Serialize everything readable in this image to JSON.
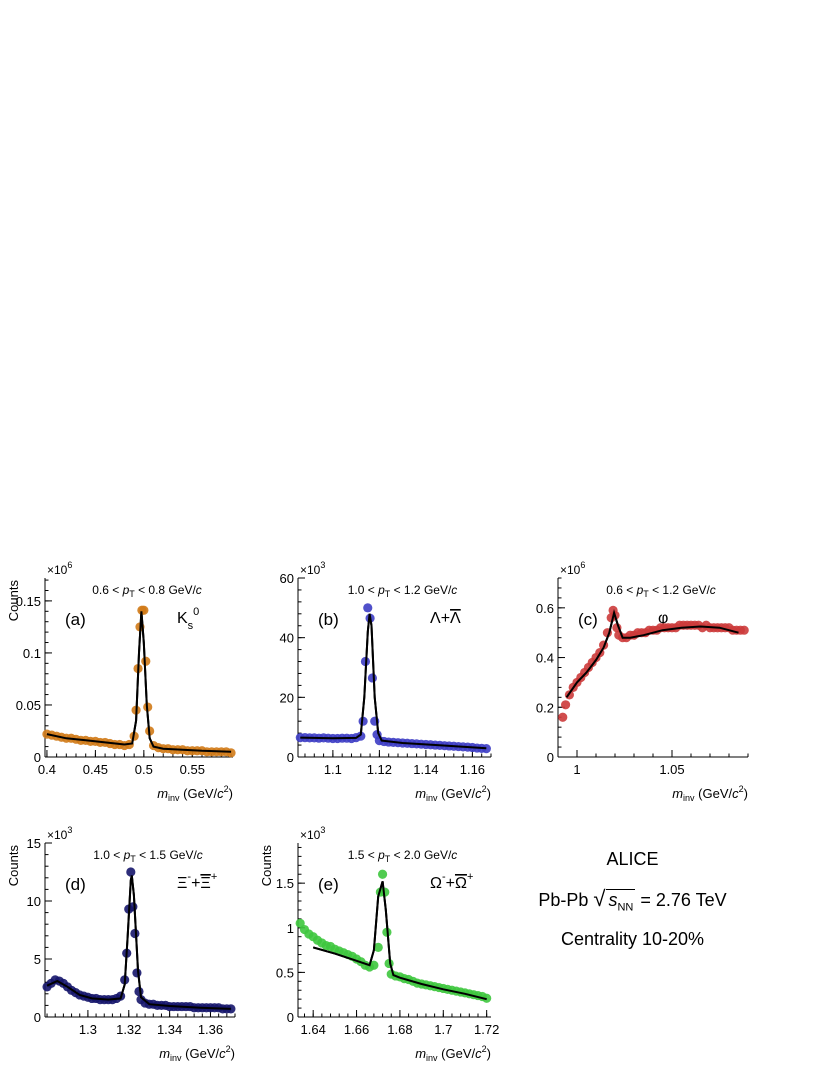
{
  "chart_data": [
    {
      "type": "scatter",
      "panel_label": "(a)",
      "particle_html": "K<tspan font-size='11' dy='6'>s</tspan><tspan font-size='11' dy='-14'>0</tspan>",
      "particle": "Ks0",
      "pt_range": "0.6 < pT < 0.8 GeV/c",
      "ylabel": "Counts",
      "xlabel": "minv (GeV/c2)",
      "exponent_label": "×10^6",
      "xlim": [
        0.398,
        0.592
      ],
      "ylim": [
        0,
        0.172
      ],
      "xticks": [
        0.4,
        0.45,
        0.5,
        0.55
      ],
      "xtick_labels": [
        "0.4",
        "0.45",
        "0.5",
        "0.55"
      ],
      "yticks": [
        0,
        0.05,
        0.1,
        0.15
      ],
      "ytick_labels": [
        "0",
        "0.05",
        "0.1",
        "0.15"
      ],
      "marker_color": "#d07a17",
      "points": {
        "x": [
          0.4,
          0.405,
          0.41,
          0.415,
          0.42,
          0.425,
          0.43,
          0.435,
          0.44,
          0.445,
          0.45,
          0.455,
          0.46,
          0.465,
          0.47,
          0.475,
          0.48,
          0.485,
          0.49,
          0.492,
          0.494,
          0.496,
          0.498,
          0.5,
          0.502,
          0.504,
          0.506,
          0.51,
          0.515,
          0.52,
          0.525,
          0.53,
          0.535,
          0.54,
          0.545,
          0.55,
          0.555,
          0.56,
          0.565,
          0.57,
          0.575,
          0.58,
          0.585,
          0.59
        ],
        "y": [
          0.022,
          0.021,
          0.02,
          0.019,
          0.018,
          0.018,
          0.017,
          0.016,
          0.016,
          0.015,
          0.015,
          0.014,
          0.014,
          0.013,
          0.012,
          0.012,
          0.011,
          0.012,
          0.02,
          0.045,
          0.085,
          0.125,
          0.141,
          0.141,
          0.092,
          0.048,
          0.025,
          0.011,
          0.009,
          0.008,
          0.008,
          0.007,
          0.007,
          0.007,
          0.006,
          0.006,
          0.006,
          0.006,
          0.005,
          0.005,
          0.005,
          0.005,
          0.005,
          0.004
        ]
      },
      "fit": {
        "x": [
          0.4,
          0.42,
          0.44,
          0.46,
          0.48,
          0.488,
          0.492,
          0.495,
          0.4975,
          0.5,
          0.503,
          0.506,
          0.51,
          0.52,
          0.54,
          0.56,
          0.59
        ],
        "y": [
          0.022,
          0.018,
          0.016,
          0.014,
          0.012,
          0.013,
          0.035,
          0.1,
          0.14,
          0.11,
          0.05,
          0.018,
          0.01,
          0.008,
          0.007,
          0.006,
          0.005
        ]
      }
    },
    {
      "type": "scatter",
      "panel_label": "(b)",
      "particle_html": "Λ+<tspan text-decoration='overline'>Λ</tspan>",
      "particle": "Λ+Λbar",
      "pt_range": "1.0 < pT < 1.2 GeV/c",
      "ylabel": "",
      "xlabel": "minv (GeV/c2)",
      "exponent_label": "×10^3",
      "xlim": [
        1.085,
        1.168
      ],
      "ylim": [
        0,
        60
      ],
      "xticks": [
        1.1,
        1.12,
        1.14,
        1.16
      ],
      "xtick_labels": [
        "1.1",
        "1.12",
        "1.14",
        "1.16"
      ],
      "yticks": [
        0,
        20,
        40,
        60
      ],
      "ytick_labels": [
        "0",
        "20",
        "40",
        "60"
      ],
      "marker_color": "#3d3dc4",
      "points": {
        "x": [
          1.086,
          1.088,
          1.09,
          1.092,
          1.094,
          1.096,
          1.098,
          1.1,
          1.102,
          1.104,
          1.106,
          1.108,
          1.11,
          1.112,
          1.113,
          1.114,
          1.115,
          1.116,
          1.117,
          1.118,
          1.119,
          1.12,
          1.122,
          1.124,
          1.126,
          1.128,
          1.13,
          1.132,
          1.134,
          1.136,
          1.138,
          1.14,
          1.142,
          1.144,
          1.146,
          1.148,
          1.15,
          1.152,
          1.154,
          1.156,
          1.158,
          1.16,
          1.162,
          1.164,
          1.166
        ],
        "y": [
          6.5,
          6.5,
          6.4,
          6.4,
          6.3,
          6.4,
          6.3,
          6.2,
          6.2,
          6.3,
          6.3,
          6.2,
          6.5,
          7.0,
          12.0,
          32.0,
          50.0,
          46.5,
          26.5,
          12.0,
          7.5,
          5.5,
          5.2,
          5.0,
          4.9,
          4.8,
          4.7,
          4.6,
          4.5,
          4.4,
          4.3,
          4.2,
          4.1,
          4.0,
          3.9,
          3.8,
          3.7,
          3.6,
          3.5,
          3.4,
          3.3,
          3.2,
          3.0,
          2.9,
          2.8
        ]
      },
      "fit": {
        "x": [
          1.086,
          1.1,
          1.11,
          1.112,
          1.1135,
          1.115,
          1.1158,
          1.1166,
          1.118,
          1.1195,
          1.121,
          1.13,
          1.145,
          1.166
        ],
        "y": [
          6.5,
          6.3,
          6.4,
          7.5,
          20.0,
          42.0,
          48.0,
          44.0,
          20.0,
          8.0,
          5.5,
          4.7,
          4.0,
          2.9
        ]
      }
    },
    {
      "type": "scatter",
      "panel_label": "(c)",
      "particle_html": "φ",
      "particle": "φ",
      "pt_range": "0.6 < pT < 1.2 GeV/c",
      "ylabel": "",
      "xlabel": "minv (GeV/c2)",
      "exponent_label": "×10^6",
      "xlim": [
        0.99,
        1.09
      ],
      "ylim": [
        0,
        0.72
      ],
      "xticks": [
        1.0,
        1.05
      ],
      "xtick_labels": [
        "1",
        "1.05"
      ],
      "yticks": [
        0,
        0.2,
        0.4,
        0.6
      ],
      "ytick_labels": [
        "0",
        "0.2",
        "0.4",
        "0.6"
      ],
      "marker_color": "#cc3b3b",
      "points": {
        "x": [
          0.9925,
          0.994,
          0.996,
          0.998,
          1.0,
          1.002,
          1.004,
          1.006,
          1.008,
          1.01,
          1.012,
          1.014,
          1.016,
          1.018,
          1.019,
          1.02,
          1.021,
          1.022,
          1.024,
          1.026,
          1.028,
          1.03,
          1.032,
          1.034,
          1.036,
          1.038,
          1.04,
          1.042,
          1.044,
          1.046,
          1.048,
          1.05,
          1.052,
          1.054,
          1.056,
          1.058,
          1.06,
          1.062,
          1.064,
          1.066,
          1.068,
          1.07,
          1.072,
          1.074,
          1.076,
          1.078,
          1.08,
          1.082,
          1.084,
          1.086,
          1.088
        ],
        "y": [
          0.16,
          0.21,
          0.25,
          0.28,
          0.3,
          0.32,
          0.34,
          0.36,
          0.38,
          0.4,
          0.42,
          0.45,
          0.5,
          0.56,
          0.59,
          0.57,
          0.52,
          0.49,
          0.48,
          0.48,
          0.49,
          0.49,
          0.5,
          0.5,
          0.5,
          0.51,
          0.51,
          0.51,
          0.52,
          0.52,
          0.52,
          0.52,
          0.52,
          0.53,
          0.53,
          0.53,
          0.53,
          0.53,
          0.53,
          0.52,
          0.53,
          0.52,
          0.52,
          0.52,
          0.52,
          0.52,
          0.52,
          0.51,
          0.51,
          0.51,
          0.51
        ]
      },
      "fit": {
        "x": [
          0.9945,
          1.0,
          1.005,
          1.01,
          1.014,
          1.017,
          1.0195,
          1.0215,
          1.024,
          1.028,
          1.035,
          1.045,
          1.055,
          1.065,
          1.075,
          1.085
        ],
        "y": [
          0.24,
          0.3,
          0.34,
          0.39,
          0.44,
          0.5,
          0.58,
          0.53,
          0.48,
          0.48,
          0.49,
          0.51,
          0.52,
          0.525,
          0.52,
          0.5
        ]
      }
    },
    {
      "type": "scatter",
      "panel_label": "(d)",
      "particle_html": "Ξ<tspan font-size='11' dy='-8'>-</tspan><tspan dy='8'>+</tspan><tspan text-decoration='overline'>Ξ</tspan><tspan font-size='11' dy='-8'>+</tspan>",
      "particle": "Ξ-+Ξbar+",
      "pt_range": "1.0 < pT < 1.5 GeV/c",
      "ylabel": "Counts",
      "xlabel": "minv (GeV/c2)",
      "exponent_label": "×10^3",
      "xlim": [
        1.279,
        1.372
      ],
      "ylim": [
        0,
        15
      ],
      "xticks": [
        1.3,
        1.32,
        1.34,
        1.36
      ],
      "xtick_labels": [
        "1.3",
        "1.32",
        "1.34",
        "1.36"
      ],
      "yticks": [
        0,
        5,
        10,
        15
      ],
      "ytick_labels": [
        "0",
        "5",
        "10",
        "15"
      ],
      "marker_color": "#16166b",
      "points": {
        "x": [
          1.28,
          1.282,
          1.284,
          1.286,
          1.288,
          1.29,
          1.292,
          1.294,
          1.296,
          1.298,
          1.3,
          1.302,
          1.304,
          1.306,
          1.308,
          1.31,
          1.312,
          1.314,
          1.316,
          1.318,
          1.319,
          1.32,
          1.321,
          1.322,
          1.323,
          1.324,
          1.325,
          1.326,
          1.328,
          1.33,
          1.332,
          1.334,
          1.336,
          1.338,
          1.34,
          1.342,
          1.344,
          1.346,
          1.348,
          1.35,
          1.352,
          1.354,
          1.356,
          1.358,
          1.36,
          1.362,
          1.364,
          1.366,
          1.368,
          1.37
        ],
        "y": [
          2.6,
          2.9,
          3.2,
          3.1,
          2.9,
          2.6,
          2.3,
          2.1,
          1.9,
          1.8,
          1.7,
          1.6,
          1.6,
          1.5,
          1.5,
          1.5,
          1.5,
          1.6,
          1.8,
          3.2,
          5.5,
          9.3,
          12.5,
          9.5,
          7.2,
          3.8,
          2.2,
          1.5,
          1.2,
          1.1,
          1.1,
          1.0,
          1.0,
          1.0,
          0.9,
          0.9,
          0.9,
          0.9,
          0.9,
          0.9,
          0.8,
          0.8,
          0.8,
          0.8,
          0.8,
          0.8,
          0.8,
          0.7,
          0.7,
          0.7
        ]
      },
      "fit": {
        "x": [
          1.28,
          1.285,
          1.29,
          1.296,
          1.302,
          1.31,
          1.316,
          1.318,
          1.3195,
          1.321,
          1.3215,
          1.3225,
          1.3245,
          1.326,
          1.33,
          1.34,
          1.355,
          1.37
        ],
        "y": [
          2.7,
          3.1,
          2.6,
          1.9,
          1.6,
          1.5,
          1.6,
          2.8,
          7.0,
          11.8,
          12.2,
          10.5,
          4.0,
          1.7,
          1.1,
          0.95,
          0.8,
          0.7
        ]
      }
    },
    {
      "type": "scatter",
      "panel_label": "(e)",
      "particle_html": "Ω<tspan font-size='11' dy='-8'>-</tspan><tspan dy='8'>+</tspan><tspan text-decoration='overline'>Ω</tspan><tspan font-size='11' dy='-8'>+</tspan>",
      "particle": "Ω-+Ωbar+",
      "pt_range": "1.5 < pT < 2.0 GeV/c",
      "ylabel": "Counts",
      "xlabel": "minv (GeV/c2)",
      "exponent_label": "×10^3",
      "xlim": [
        1.633,
        1.722
      ],
      "ylim": [
        0,
        1.95
      ],
      "xticks": [
        1.64,
        1.66,
        1.68,
        1.7,
        1.72
      ],
      "xtick_labels": [
        "1.64",
        "1.66",
        "1.68",
        "1.7",
        "1.72"
      ],
      "yticks": [
        0,
        0.5,
        1.0,
        1.5
      ],
      "ytick_labels": [
        "0",
        "0.5",
        "1",
        "1.5"
      ],
      "marker_color": "#3ec73e",
      "points": {
        "x": [
          1.634,
          1.636,
          1.638,
          1.64,
          1.642,
          1.644,
          1.646,
          1.648,
          1.65,
          1.652,
          1.654,
          1.656,
          1.658,
          1.66,
          1.662,
          1.664,
          1.666,
          1.668,
          1.67,
          1.671,
          1.672,
          1.673,
          1.674,
          1.675,
          1.676,
          1.678,
          1.68,
          1.682,
          1.684,
          1.686,
          1.688,
          1.69,
          1.692,
          1.694,
          1.696,
          1.698,
          1.7,
          1.702,
          1.704,
          1.706,
          1.708,
          1.71,
          1.712,
          1.714,
          1.716,
          1.718,
          1.72
        ],
        "y": [
          1.05,
          0.98,
          0.93,
          0.9,
          0.86,
          0.83,
          0.8,
          0.79,
          0.76,
          0.74,
          0.72,
          0.7,
          0.68,
          0.65,
          0.62,
          0.58,
          0.56,
          0.58,
          0.78,
          1.4,
          1.6,
          1.4,
          0.95,
          0.6,
          0.48,
          0.46,
          0.45,
          0.43,
          0.42,
          0.4,
          0.38,
          0.37,
          0.36,
          0.35,
          0.34,
          0.33,
          0.32,
          0.31,
          0.3,
          0.29,
          0.28,
          0.27,
          0.26,
          0.25,
          0.24,
          0.23,
          0.21
        ]
      },
      "fit": {
        "x": [
          1.64,
          1.65,
          1.66,
          1.666,
          1.668,
          1.67,
          1.672,
          1.6735,
          1.6755,
          1.677,
          1.68,
          1.69,
          1.7,
          1.71,
          1.72
        ],
        "y": [
          0.78,
          0.71,
          0.63,
          0.58,
          0.75,
          1.35,
          1.52,
          1.2,
          0.6,
          0.47,
          0.44,
          0.37,
          0.31,
          0.26,
          0.2
        ]
      }
    }
  ],
  "info": {
    "experiment": "ALICE",
    "system": "Pb-Pb",
    "energy_var": "s",
    "energy_sub": "NN",
    "energy_value": "= 2.76 TeV",
    "centrality": "Centrality 10-20%"
  }
}
